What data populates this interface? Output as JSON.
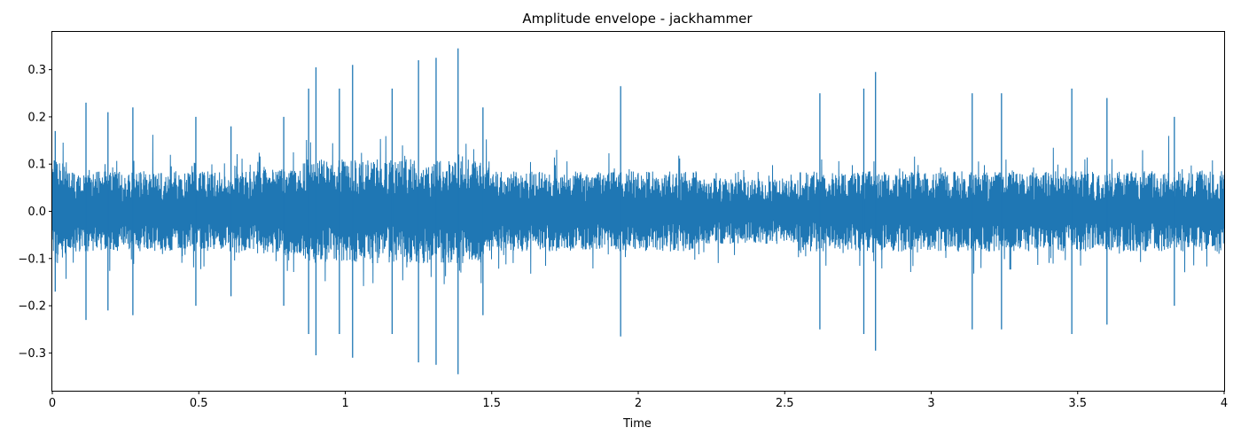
{
  "chart_data": {
    "type": "line",
    "title": "Amplitude envelope - jackhammer",
    "xlabel": "Time",
    "ylabel": "",
    "xlim": [
      0,
      4
    ],
    "ylim": [
      -0.38,
      0.38
    ],
    "x_ticks": [
      {
        "value": 0,
        "label": "0"
      },
      {
        "value": 0.5,
        "label": "0.5"
      },
      {
        "value": 1,
        "label": "1"
      },
      {
        "value": 1.5,
        "label": "1.5"
      },
      {
        "value": 2,
        "label": "2"
      },
      {
        "value": 2.5,
        "label": "2.5"
      },
      {
        "value": 3,
        "label": "3"
      },
      {
        "value": 3.5,
        "label": "3.5"
      },
      {
        "value": 4,
        "label": "4"
      }
    ],
    "y_ticks": [
      {
        "value": 0.3,
        "label": "0.3"
      },
      {
        "value": 0.2,
        "label": "0.2"
      },
      {
        "value": 0.1,
        "label": "0.1"
      },
      {
        "value": 0.0,
        "label": "0.0"
      },
      {
        "value": -0.1,
        "label": "−0.1"
      },
      {
        "value": -0.2,
        "label": "−0.2"
      },
      {
        "value": -0.3,
        "label": "−0.3"
      }
    ],
    "grid": false,
    "series": [
      {
        "color": "#1f77b4",
        "peaks": [
          {
            "x": 0.01,
            "y": 0.17
          },
          {
            "x": 0.115,
            "y": 0.23
          },
          {
            "x": 0.19,
            "y": 0.21
          },
          {
            "x": 0.275,
            "y": 0.22
          },
          {
            "x": 0.49,
            "y": 0.2
          },
          {
            "x": 0.61,
            "y": 0.18
          },
          {
            "x": 0.79,
            "y": 0.2
          },
          {
            "x": 0.875,
            "y": 0.26
          },
          {
            "x": 0.9,
            "y": 0.305
          },
          {
            "x": 0.98,
            "y": 0.26
          },
          {
            "x": 1.025,
            "y": 0.31
          },
          {
            "x": 1.16,
            "y": 0.26
          },
          {
            "x": 1.25,
            "y": 0.32
          },
          {
            "x": 1.31,
            "y": 0.325
          },
          {
            "x": 1.385,
            "y": 0.345
          },
          {
            "x": 1.47,
            "y": 0.22
          },
          {
            "x": 1.94,
            "y": 0.265
          },
          {
            "x": 2.62,
            "y": 0.25
          },
          {
            "x": 2.77,
            "y": 0.26
          },
          {
            "x": 2.81,
            "y": 0.295
          },
          {
            "x": 3.14,
            "y": 0.25
          },
          {
            "x": 3.24,
            "y": 0.25
          },
          {
            "x": 3.48,
            "y": 0.26
          },
          {
            "x": 3.6,
            "y": 0.24
          },
          {
            "x": 3.83,
            "y": 0.2
          }
        ]
      }
    ]
  }
}
